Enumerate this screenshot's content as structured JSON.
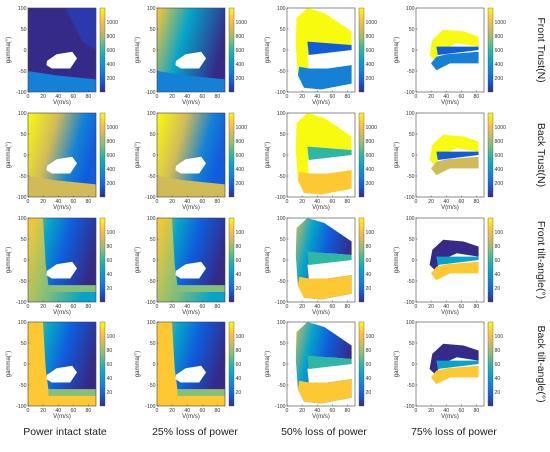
{
  "figure": {
    "row_labels": [
      "Front Trust(N)",
      "Back Trust(N)",
      "Front tilt-angle(°)",
      "Back tilt-angle(°)"
    ],
    "column_labels": [
      "Power intact state",
      "25% loss of power",
      "50% loss of power",
      "75% loss of power"
    ]
  },
  "colormap": {
    "name": "parula",
    "stops": [
      "#352a87",
      "#0f5cdd",
      "#1481d6",
      "#06a4ca",
      "#2eb7a4",
      "#87bf77",
      "#d1bb59",
      "#fec832",
      "#f9fb0e"
    ]
  },
  "chart_data": [
    {
      "type": "heatmap",
      "row": "thrust",
      "panels": [
        "Front Trust(N) / Power intact state",
        "Front Trust(N) / 25% loss of power",
        "Front Trust(N) / 50% loss of power",
        "Front Trust(N) / 75% loss of power"
      ],
      "xlabel": "V(m/s)",
      "ylabel": "gamma(°)",
      "xlim": [
        0,
        90
      ],
      "ylim": [
        -100,
        100
      ],
      "xticks": [
        "0",
        "20",
        "40",
        "60",
        "80"
      ],
      "yticks": [
        "100",
        "50",
        "0",
        "-50",
        "-100"
      ],
      "colorbar": {
        "ticks": [
          "1000",
          "800",
          "600",
          "400",
          "200"
        ],
        "range": [
          0,
          1200
        ]
      }
    },
    {
      "type": "heatmap",
      "row": "thrust",
      "panels": [
        "Back Trust(N) / Power intact state",
        "Back Trust(N) / 25% loss of power",
        "Back Trust(N) / 50% loss of power",
        "Back Trust(N) / 75% loss of power"
      ],
      "xlabel": "V(m/s)",
      "ylabel": "gamma(°)",
      "xlim": [
        0,
        90
      ],
      "ylim": [
        -100,
        100
      ],
      "xticks": [
        "0",
        "20",
        "40",
        "60",
        "80"
      ],
      "yticks": [
        "100",
        "50",
        "0",
        "-50",
        "-100"
      ],
      "colorbar": {
        "ticks": [
          "1000",
          "800",
          "600",
          "400",
          "200"
        ],
        "range": [
          0,
          1200
        ]
      }
    },
    {
      "type": "heatmap",
      "row": "angle",
      "panels": [
        "Front tilt-angle(°) / Power intact state",
        "Front tilt-angle(°) / 25% loss of power",
        "Front tilt-angle(°) / 50% loss of power",
        "Front tilt-angle(°) / 75% loss of power"
      ],
      "xlabel": "V(m/s)",
      "ylabel": "gamma(°)",
      "xlim": [
        0,
        90
      ],
      "ylim": [
        -100,
        100
      ],
      "xticks": [
        "0",
        "20",
        "40",
        "60",
        "80"
      ],
      "yticks": [
        "100",
        "50",
        "0",
        "-50",
        "-100"
      ],
      "colorbar": {
        "ticks": [
          "100",
          "80",
          "60",
          "40",
          "20"
        ],
        "range": [
          0,
          120
        ]
      }
    },
    {
      "type": "heatmap",
      "row": "angle",
      "panels": [
        "Back tilt-angle(°) / Power intact state",
        "Back tilt-angle(°) / 25% loss of power",
        "Back tilt-angle(°) / 50% loss of power",
        "Back tilt-angle(°) / 75% loss of power"
      ],
      "xlabel": "V(m/s)",
      "ylabel": "gamma(°)",
      "xlim": [
        0,
        90
      ],
      "ylim": [
        -100,
        100
      ],
      "xticks": [
        "0",
        "20",
        "40",
        "60",
        "80"
      ],
      "yticks": [
        "100",
        "50",
        "0",
        "-50",
        "-100"
      ],
      "colorbar": {
        "ticks": [
          "100",
          "80",
          "60",
          "40",
          "20"
        ],
        "range": [
          0,
          120
        ]
      }
    }
  ]
}
